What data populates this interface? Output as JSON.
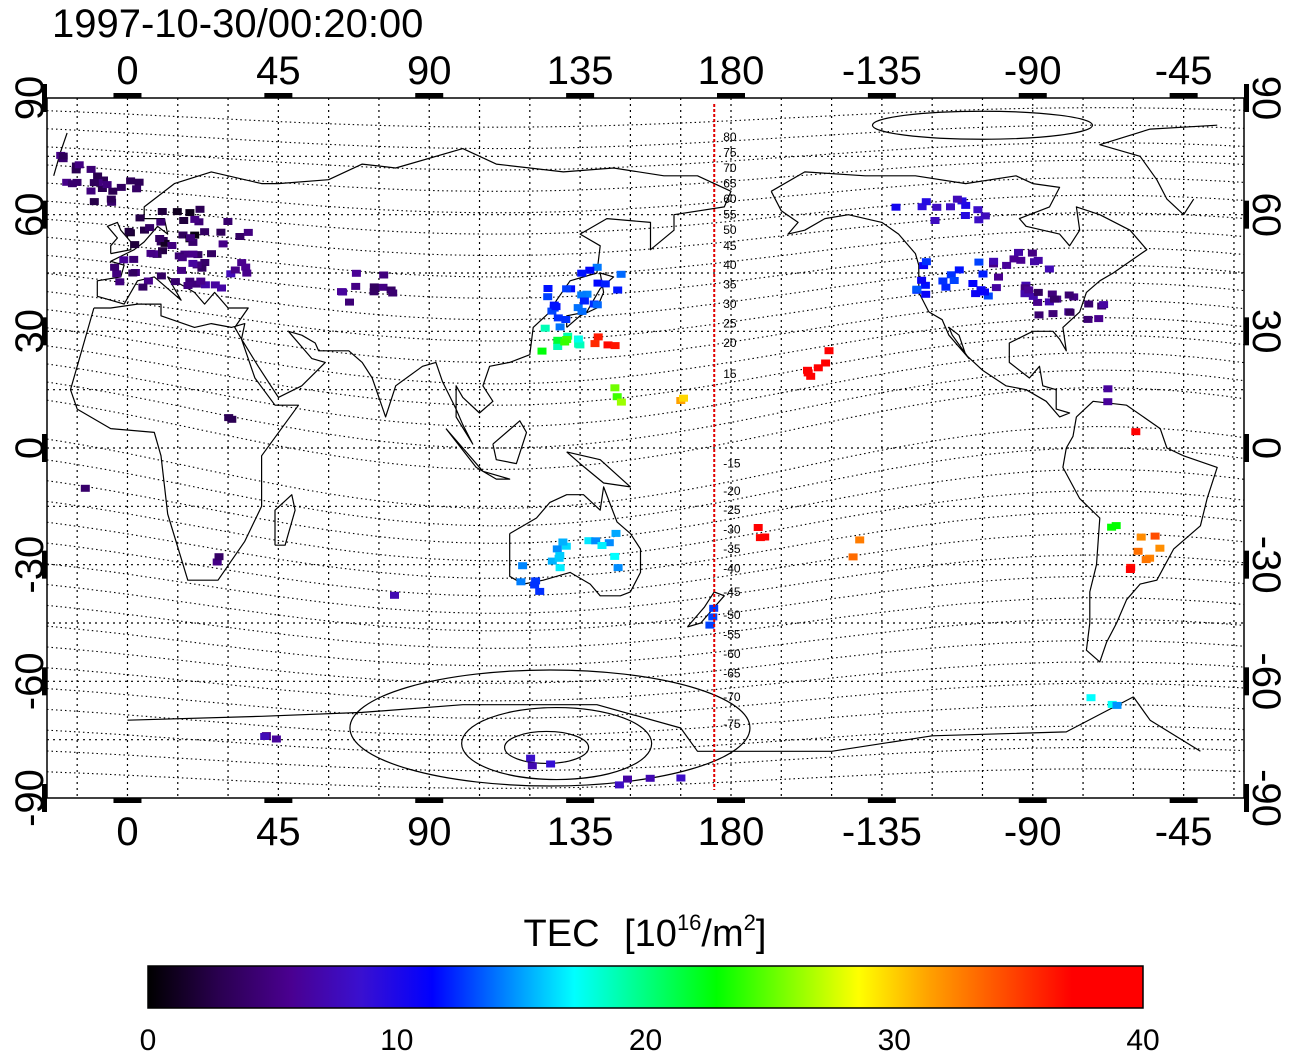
{
  "title": "1997-10-30/00:20:00",
  "map": {
    "lon_ticks": [
      "0",
      "45",
      "90",
      "135",
      "180",
      "-135",
      "-90",
      "-45"
    ],
    "lon_tick_values": [
      0,
      45,
      90,
      135,
      180,
      225,
      270,
      315
    ],
    "lat_ticks": [
      "90",
      "60",
      "30",
      "0",
      "-30",
      "-60",
      "-90"
    ],
    "lat_tick_values": [
      90,
      60,
      30,
      0,
      -30,
      -60,
      -90
    ],
    "lon_range": [
      -24,
      333
    ],
    "lat_range": [
      -90,
      90
    ],
    "dashed_grid_step_deg": 15,
    "meridian_marker_lon": 175,
    "meridian_marker_color": "#e00000",
    "contour_labels": [
      "80",
      "75",
      "70",
      "65",
      "60",
      "55",
      "50",
      "45",
      "40",
      "35",
      "30",
      "25",
      "20",
      "15",
      "-15",
      "-20",
      "-25",
      "-30",
      "-35",
      "-40",
      "-45",
      "-50",
      "-55",
      "-60",
      "-65",
      "-70",
      "-75"
    ],
    "contour_label_lats": [
      80,
      76,
      72,
      68,
      64,
      60,
      56,
      52,
      47,
      42,
      37,
      32,
      27,
      19,
      -4,
      -11,
      -16,
      -21,
      -26,
      -31,
      -37,
      -43,
      -48,
      -53,
      -58,
      -64,
      -71
    ]
  },
  "colorbar": {
    "title_main": "TEC",
    "title_unit_open": "[10",
    "title_unit_exp": "16",
    "title_unit_mid": "/m",
    "title_unit_exp2": "2",
    "title_unit_close": "]",
    "min": 0,
    "max": 40,
    "tick_labels": [
      "0",
      "10",
      "20",
      "30",
      "40"
    ],
    "tick_values": [
      0,
      10,
      20,
      30,
      40
    ],
    "colormap": [
      "#000000",
      "#2a0050",
      "#4a0090",
      "#3a10d0",
      "#0000ff",
      "#0080ff",
      "#00ffff",
      "#00ff80",
      "#00ff00",
      "#80ff00",
      "#ffff00",
      "#ffa000",
      "#ff5000",
      "#ff0000",
      "#ff0000"
    ]
  },
  "chart_data": {
    "type": "heatmap",
    "title": "1997-10-30/00:20:00",
    "xlabel": "",
    "ylabel": "",
    "value_label": "TEC [10^16/m^2]",
    "value_range": [
      0,
      40
    ],
    "cells": [
      {
        "lon": -10,
        "lat": 70,
        "w": 25,
        "h": 14,
        "tec": 4
      },
      {
        "lon": 10,
        "lat": 58,
        "w": 22,
        "h": 10,
        "tec": 2
      },
      {
        "lon": 20,
        "lat": 55,
        "w": 30,
        "h": 10,
        "tec": 4
      },
      {
        "lon": 8,
        "lat": 47,
        "w": 28,
        "h": 10,
        "tec": 5
      },
      {
        "lon": 25,
        "lat": 45,
        "w": 20,
        "h": 8,
        "tec": 6
      },
      {
        "lon": 70,
        "lat": 42,
        "w": 20,
        "h": 8,
        "tec": 5
      },
      {
        "lon": 30,
        "lat": 10,
        "w": 6,
        "h": 5,
        "tec": 3
      },
      {
        "lon": 25,
        "lat": -27,
        "w": 6,
        "h": 5,
        "tec": 5
      },
      {
        "lon": 135,
        "lat": 40,
        "w": 22,
        "h": 16,
        "tec": 13
      },
      {
        "lon": 130,
        "lat": 30,
        "w": 14,
        "h": 6,
        "tec": 19
      },
      {
        "lon": 125,
        "lat": 27,
        "w": 10,
        "h": 6,
        "tec": 23
      },
      {
        "lon": 143,
        "lat": 28,
        "w": 12,
        "h": 5,
        "tec": 36
      },
      {
        "lon": 148,
        "lat": 14,
        "w": 8,
        "h": 5,
        "tec": 25
      },
      {
        "lon": 165,
        "lat": 12,
        "w": 5,
        "h": 5,
        "tec": 31
      },
      {
        "lon": 135,
        "lat": -25,
        "w": 20,
        "h": 10,
        "tec": 16
      },
      {
        "lon": 118,
        "lat": -32,
        "w": 8,
        "h": 8,
        "tec": 13
      },
      {
        "lon": 172,
        "lat": -43,
        "w": 6,
        "h": 8,
        "tec": 12
      },
      {
        "lon": 205,
        "lat": 22,
        "w": 10,
        "h": 8,
        "tec": 39
      },
      {
        "lon": 190,
        "lat": -20,
        "w": 8,
        "h": 5,
        "tec": 38
      },
      {
        "lon": 215,
        "lat": -25,
        "w": 6,
        "h": 5,
        "tec": 33
      },
      {
        "lon": 240,
        "lat": 62,
        "w": 30,
        "h": 6,
        "tec": 9
      },
      {
        "lon": 245,
        "lat": 45,
        "w": 22,
        "h": 12,
        "tec": 12
      },
      {
        "lon": 265,
        "lat": 45,
        "w": 20,
        "h": 14,
        "tec": 6
      },
      {
        "lon": 280,
        "lat": 38,
        "w": 20,
        "h": 10,
        "tec": 5
      },
      {
        "lon": 290,
        "lat": 15,
        "w": 6,
        "h": 5,
        "tec": 5
      },
      {
        "lon": 300,
        "lat": 5,
        "w": 4,
        "h": 4,
        "tec": 39
      },
      {
        "lon": 305,
        "lat": -25,
        "w": 10,
        "h": 8,
        "tec": 33
      },
      {
        "lon": 297,
        "lat": -32,
        "w": 6,
        "h": 5,
        "tec": 38
      },
      {
        "lon": 295,
        "lat": -20,
        "w": 6,
        "h": 5,
        "tec": 24
      },
      {
        "lon": 290,
        "lat": -65,
        "w": 10,
        "h": 4,
        "tec": 16
      },
      {
        "lon": 120,
        "lat": -80,
        "w": 15,
        "h": 3,
        "tec": 8
      },
      {
        "lon": 155,
        "lat": -85,
        "w": 20,
        "h": 3,
        "tec": 7
      },
      {
        "lon": 40,
        "lat": -75,
        "w": 10,
        "h": 4,
        "tec": 7
      },
      {
        "lon": 80,
        "lat": -35,
        "w": 4,
        "h": 4,
        "tec": 7
      },
      {
        "lon": -15,
        "lat": -10,
        "w": 4,
        "h": 4,
        "tec": 5
      }
    ]
  }
}
